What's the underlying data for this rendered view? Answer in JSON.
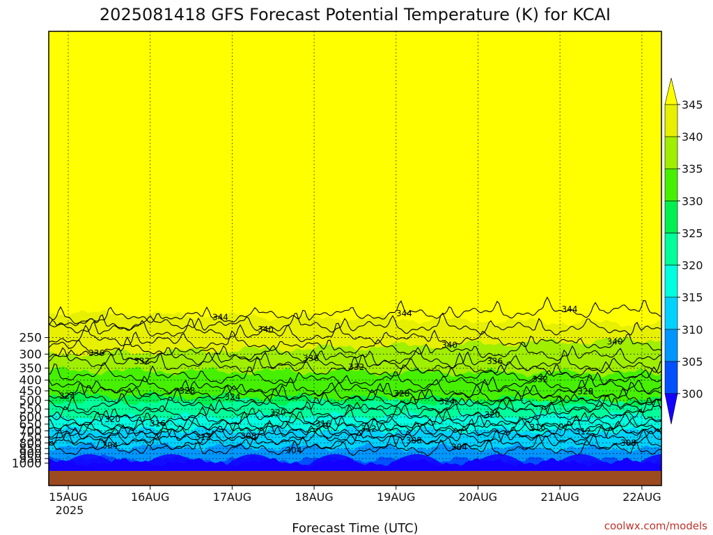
{
  "chart_data": {
    "type": "heatmap",
    "title": "2025081418 GFS Forecast Potential Temperature (K) for KCAI",
    "xlabel": "Forecast Time (UTC)",
    "x_ticks": [
      "15AUG",
      "16AUG",
      "17AUG",
      "18AUG",
      "19AUG",
      "20AUG",
      "21AUG",
      "22AUG"
    ],
    "x_year": "2025",
    "y_ticks": [
      250,
      300,
      350,
      400,
      450,
      500,
      550,
      600,
      650,
      700,
      750,
      800,
      850,
      900,
      950,
      1000
    ],
    "ylim": [
      1000,
      200
    ],
    "y_scale": "log",
    "colorbar": {
      "ticks": [
        300,
        305,
        310,
        315,
        320,
        325,
        330,
        335,
        340,
        345
      ],
      "colors": [
        "#1400ff",
        "#0050ff",
        "#0096ff",
        "#00d2ff",
        "#00ffe0",
        "#00ff9a",
        "#00f050",
        "#46f000",
        "#a0ee00",
        "#e6f000",
        "#ffff00"
      ],
      "extend": "both"
    },
    "contour_levels": [
      {
        "value": 344,
        "p_start": 205,
        "p_end": 185,
        "label": "344"
      },
      {
        "value": 340,
        "p_start": 225,
        "p_end": 275,
        "label": "340"
      },
      {
        "value": 336,
        "p_start": 278,
        "p_end": 353,
        "label": "336"
      },
      {
        "value": 332,
        "p_start": 320,
        "p_end": 403,
        "label": "332"
      },
      {
        "value": 328,
        "p_start": 430,
        "p_end": 468,
        "label": "328"
      },
      {
        "value": 324,
        "p_start": 480,
        "p_end": 525,
        "label": "324"
      },
      {
        "value": 320,
        "p_start": 590,
        "p_end": 560,
        "label": "320"
      },
      {
        "value": 316,
        "p_start": 660,
        "p_end": 648,
        "label": "316"
      },
      {
        "value": 312,
        "p_start": 725,
        "p_end": 690,
        "label": "312"
      },
      {
        "value": 308,
        "p_start": 765,
        "p_end": 760,
        "label": "308"
      },
      {
        "value": 304,
        "p_start": 860,
        "p_end": 860,
        "label": "304"
      }
    ],
    "grid": true
  },
  "footer": {
    "watermark": "coolwx.com/models"
  },
  "colors": {
    "ground": "#9c4a20",
    "lines": "#000000"
  }
}
